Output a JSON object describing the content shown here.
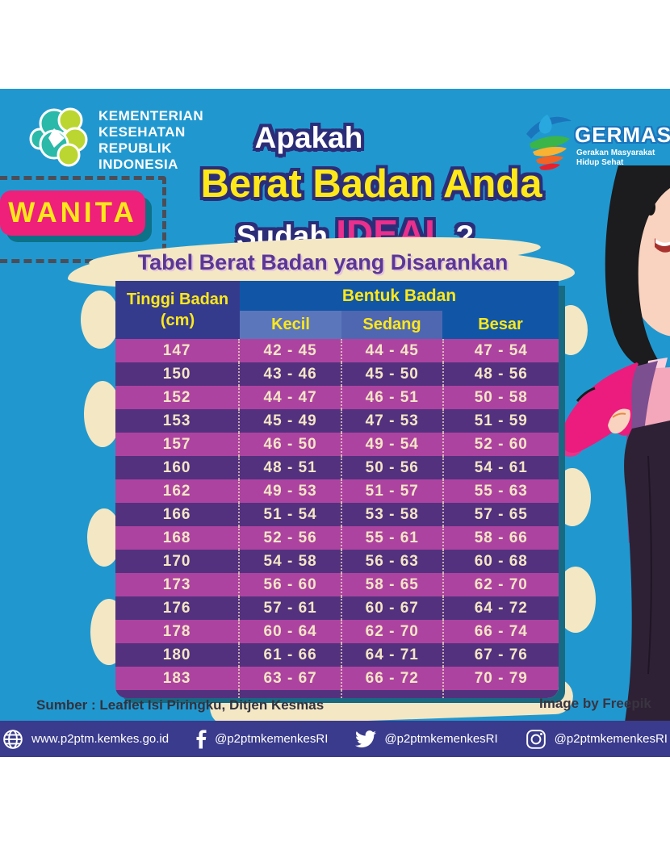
{
  "poster": {
    "ministry": {
      "name_line1": "KEMENTERIAN",
      "name_line2": "KESEHATAN",
      "name_line3": "REPUBLIK",
      "name_line4": "INDONESIA"
    },
    "germas": {
      "name": "GERMAS",
      "tagline_line1": "Gerakan Masyarakat",
      "tagline_line2": "Hidup Sehat"
    },
    "badge": {
      "label": "WANITA"
    },
    "title": {
      "line1": "Apakah",
      "line2": "Berat Badan Anda",
      "line3_word": "Sudah",
      "line3_highlight": "IDEAL",
      "line3_mark": " ?"
    },
    "table": {
      "heading": "Tabel Berat Badan yang Disarankan",
      "col_height_line1": "Tinggi Badan",
      "col_height_line2": "(cm)",
      "group_header": "Bentuk Badan",
      "sub_headers": [
        "Kecil",
        "Sedang",
        "Besar"
      ],
      "rows": [
        {
          "height": "147",
          "kecil": "42 - 45",
          "sedang": "44 - 45",
          "besar": "47 - 54"
        },
        {
          "height": "150",
          "kecil": "43 - 46",
          "sedang": "45 - 50",
          "besar": "48 - 56"
        },
        {
          "height": "152",
          "kecil": "44 - 47",
          "sedang": "46 - 51",
          "besar": "50 - 58"
        },
        {
          "height": "153",
          "kecil": "45 - 49",
          "sedang": "47 - 53",
          "besar": "51 - 59"
        },
        {
          "height": "157",
          "kecil": "46 - 50",
          "sedang": "49 - 54",
          "besar": "52 - 60"
        },
        {
          "height": "160",
          "kecil": "48 - 51",
          "sedang": "50 - 56",
          "besar": "54 - 61"
        },
        {
          "height": "162",
          "kecil": "49 - 53",
          "sedang": "51 - 57",
          "besar": "55 - 63"
        },
        {
          "height": "166",
          "kecil": "51 - 54",
          "sedang": "53 - 58",
          "besar": "57 - 65"
        },
        {
          "height": "168",
          "kecil": "52 - 56",
          "sedang": "55 - 61",
          "besar": "58 - 66"
        },
        {
          "height": "170",
          "kecil": "54 - 58",
          "sedang": "56 - 63",
          "besar": "60 - 68"
        },
        {
          "height": "173",
          "kecil": "56 - 60",
          "sedang": "58 - 65",
          "besar": "62 - 70"
        },
        {
          "height": "176",
          "kecil": "57 - 61",
          "sedang": "60 - 67",
          "besar": "64 - 72"
        },
        {
          "height": "178",
          "kecil": "60 - 64",
          "sedang": "62 - 70",
          "besar": "66 - 74"
        },
        {
          "height": "180",
          "kecil": "61 - 66",
          "sedang": "64 - 71",
          "besar": "67 - 76"
        },
        {
          "height": "183",
          "kecil": "63 - 67",
          "sedang": "66 - 72",
          "besar": "70 - 79"
        }
      ]
    },
    "source_note": "Sumber : Leaflet Isi Piringku, Ditjen Kesmas",
    "image_credit": "Image by Freepik",
    "footer": {
      "website": "www.p2ptm.kemkes.go.id",
      "facebook": "@p2ptmkemenkesRI",
      "twitter": "@p2ptmkemenkesRI",
      "instagram": "@p2ptmkemenkesRI"
    },
    "colors": {
      "background_blue": "#2098cf",
      "footer_bar": "#3a3b8c",
      "row_magenta": "#ad43a0",
      "row_purple": "#53317e",
      "header_indigo": "#343b8d",
      "header_blue": "#1156a6",
      "subheader_kecil": "#5c76bb",
      "subheader_sedang": "#4f67b0",
      "badge_pink": "#ee2079",
      "accent_yellow": "#ffe81a",
      "title_pink": "#ea2f8c",
      "cream": "#f4e7c3",
      "heading_purple": "#5a3796"
    }
  }
}
